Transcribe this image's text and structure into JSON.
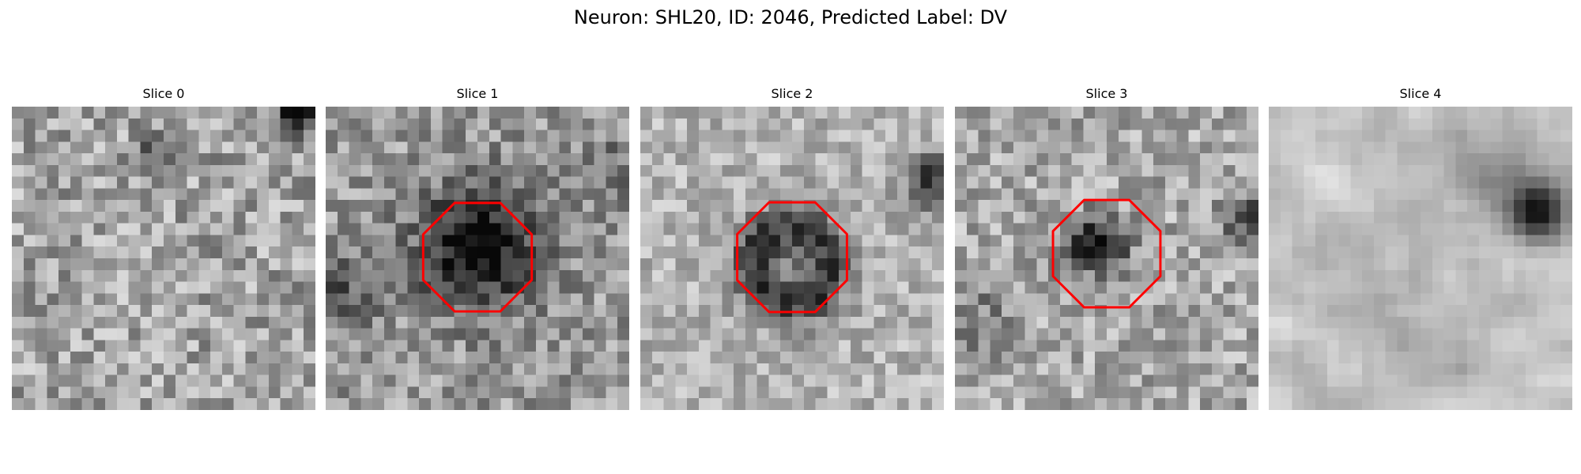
{
  "figure": {
    "title": "Neuron: SHL20, ID: 2046, Predicted Label: DV"
  },
  "colors": {
    "roi_outline": "#ff0000",
    "background": "#ffffff"
  },
  "slices": [
    {
      "title": "Slice 0",
      "roi_outline": false
    },
    {
      "title": "Slice 1",
      "roi_outline": true
    },
    {
      "title": "Slice 2",
      "roi_outline": true
    },
    {
      "title": "Slice 3",
      "roi_outline": true
    },
    {
      "title": "Slice 4",
      "roi_outline": false
    }
  ]
}
